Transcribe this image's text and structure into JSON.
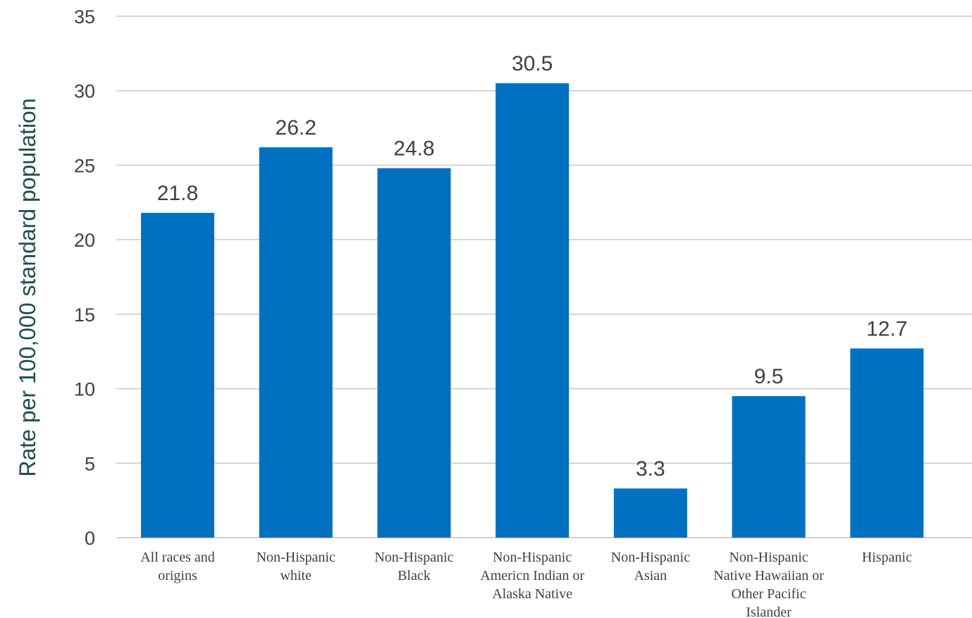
{
  "chart_data": {
    "type": "bar",
    "title": "",
    "xlabel": "",
    "ylabel": "Rate per 100,000 standard population",
    "ylim": [
      0,
      35
    ],
    "yticks": [
      0,
      5,
      10,
      15,
      20,
      25,
      30,
      35
    ],
    "grid": true,
    "bar_color": "#0070C0",
    "categories": [
      [
        "All races and",
        "origins"
      ],
      [
        "Non-Hispanic",
        "white"
      ],
      [
        "Non-Hispanic",
        "Black"
      ],
      [
        "Non-Hispanic",
        "Americn Indian or",
        "Alaska Native"
      ],
      [
        "Non-Hispanic",
        "Asian"
      ],
      [
        "Non-Hispanic",
        "Native Hawaiian or",
        "Other Pacific",
        "Islander"
      ],
      [
        "Hispanic"
      ]
    ],
    "values": [
      21.8,
      26.2,
      24.8,
      30.5,
      3.3,
      9.5,
      12.7
    ],
    "data_labels": [
      "21.8",
      "26.2",
      "24.8",
      "30.5",
      "3.3",
      "9.5",
      "12.7"
    ]
  }
}
